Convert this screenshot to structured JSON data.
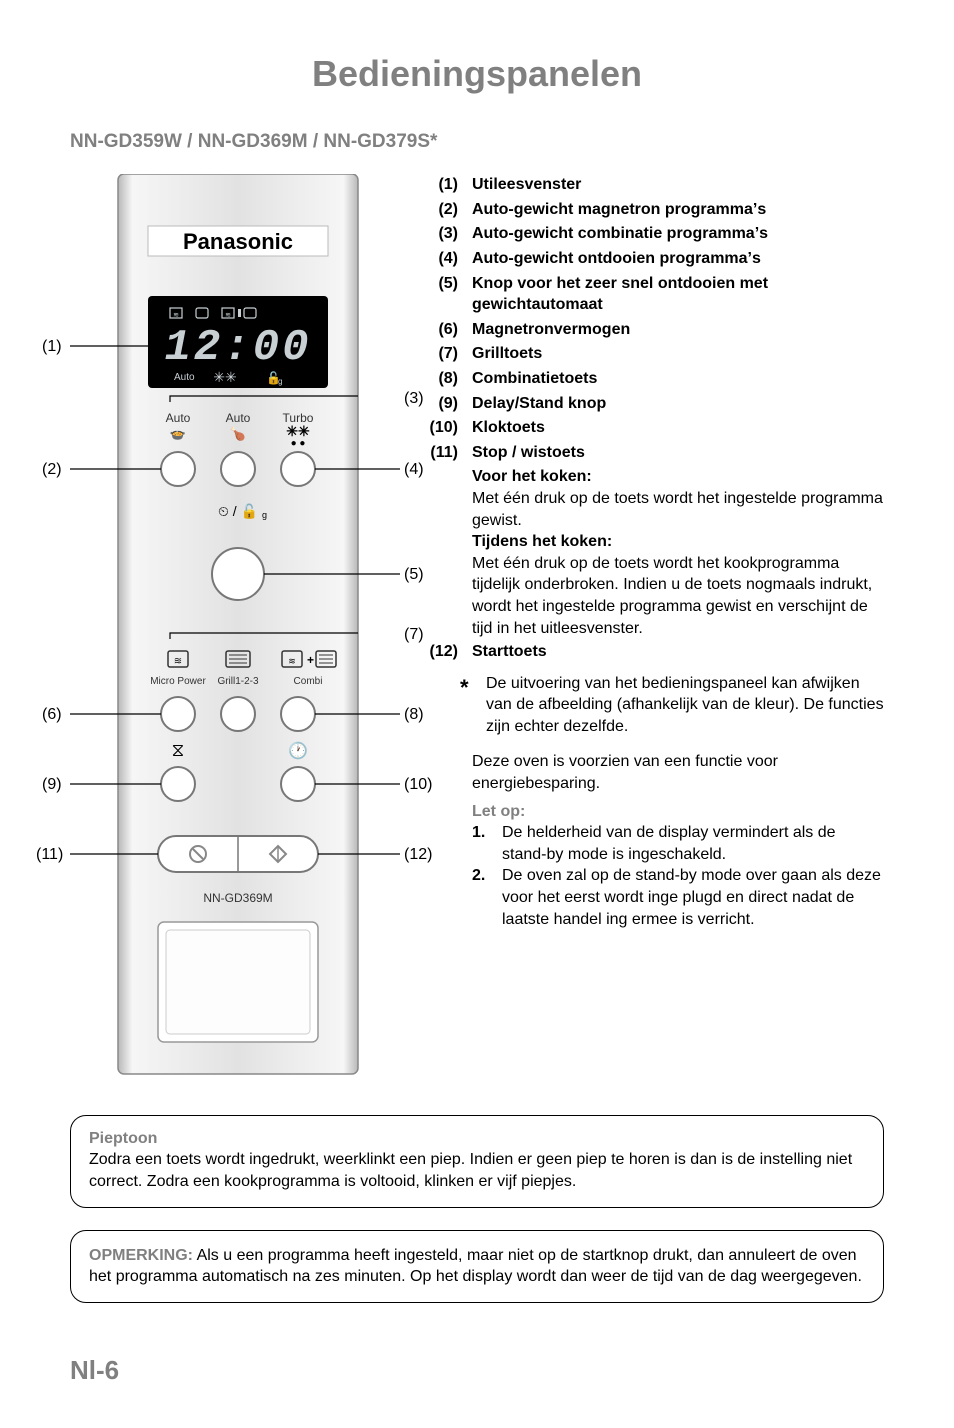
{
  "title": "Bedieningspanelen",
  "subtitle": "NN-GD359W / NN-GD369M / NN-GD379S*",
  "panel": {
    "brand": "Panasonic",
    "display_time": "12:00",
    "display_sub_left": "Auto",
    "auto_labels": [
      "Auto",
      "Auto",
      "Turbo"
    ],
    "turbo_defrost_label": "⏲ / 🔓g",
    "row2_labels": [
      "Micro Power",
      "Grill1-2-3",
      "Combi"
    ],
    "model_label": "NN-GD369M"
  },
  "callouts": {
    "c1": "(1)",
    "c2": "(2)",
    "c3": "(3)",
    "c4": "(4)",
    "c5": "(5)",
    "c6": "(6)",
    "c7": "(7)",
    "c8": "(8)",
    "c9": "(9)",
    "c10": "(10)",
    "c11": "(11)",
    "c12": "(12)"
  },
  "list": [
    {
      "n": "(1)",
      "t": "Utileesvenster"
    },
    {
      "n": "(2)",
      "t": "Auto-gewicht magnetron programmaʼs"
    },
    {
      "n": "(3)",
      "t": "Auto-gewicht combinatie programmaʼs"
    },
    {
      "n": "(4)",
      "t": "Auto-gewicht ontdooien programmaʼs"
    },
    {
      "n": "(5)",
      "t": "Knop voor het zeer snel ontdooien met gewichtautomaat"
    },
    {
      "n": "(6)",
      "t": "Magnetronvermogen"
    },
    {
      "n": "(7)",
      "t": "Grilltoets"
    },
    {
      "n": "(8)",
      "t": "Combinatietoets"
    },
    {
      "n": "(9)",
      "t": "Delay/Stand knop"
    },
    {
      "n": "(10)",
      "t": "Kloktoets"
    },
    {
      "n": "(11)",
      "t": "Stop / wistoets"
    }
  ],
  "stop_block": {
    "h1": "Voor het koken:",
    "p1": "Met één druk op de toets wordt het ingestelde programma gewist.",
    "h2": "Tijdens het koken:",
    "p2": "Met één druk op de toets wordt het kookprogramma tijdelijk onderbroken. Indien u de toets nogmaals indrukt, wordt het ingestelde programma gewist en verschijnt de tijd in het uitleesvenster."
  },
  "item12": {
    "n": "(12)",
    "t": "Starttoets"
  },
  "asterisk": {
    "sym": "*",
    "text": "De uitvoering van het bedieningspaneel kan afwijken van de afbeelding (afhankelijk van de kleur). De functies zijn echter dezelfde."
  },
  "energy": "Deze oven is voorzien van een functie voor energiebesparing.",
  "letop": "Let op:",
  "notes": [
    {
      "n": "1.",
      "t": "De helderheid van de display vermindert als de stand-by mode is ingeschakeld."
    },
    {
      "n": "2.",
      "t": "De oven zal op de stand-by mode over gaan als deze voor het eerst wordt inge plugd en direct nadat de laatste handel ing ermee is verricht."
    }
  ],
  "pieptoon": {
    "title": "Pieptoon",
    "text": "Zodra een toets wordt ingedrukt, weerklinkt een piep. Indien er geen piep te horen is dan is de instelling niet correct. Zodra een kookprogramma is voltooid, klinken er vijf piepjes."
  },
  "opmerking": {
    "label": "OPMERKING:",
    "text": " Als u een programma heeft ingesteld, maar niet op de startknop drukt, dan annuleert de oven het programma automatisch na zes minuten. Op het display wordt dan weer de tijd van de dag weergegeven."
  },
  "page": "Nl-6",
  "colors": {
    "grey": "#808080",
    "black": "#000000",
    "panel_metal_light": "#f5f5f5",
    "panel_metal_mid": "#d8d8d8",
    "display_bg": "#000000",
    "display_seg": "#c8d0d4"
  }
}
